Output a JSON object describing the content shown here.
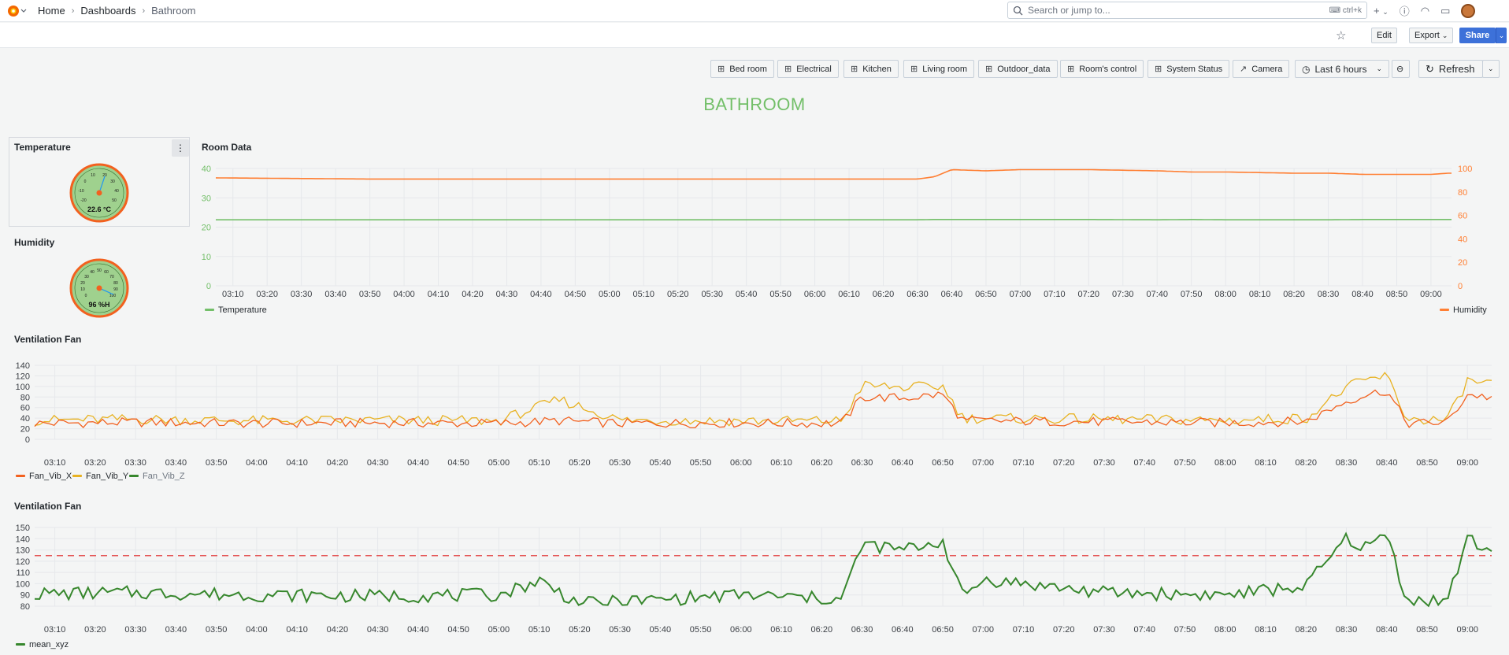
{
  "nav": {
    "breadcrumb": [
      "Home",
      "Dashboards",
      "Bathroom"
    ],
    "search_placeholder": "Search or jump to...",
    "search_shortcut": "ctrl+k",
    "add_label": "+",
    "icons": [
      "help-icon",
      "rss-icon",
      "dock-icon"
    ]
  },
  "toolbar": {
    "edit": "Edit",
    "export": "Export",
    "share": "Share"
  },
  "links": [
    "Bed room",
    "Electrical",
    "Kitchen",
    "Living room",
    "Outdoor_data",
    "Room's control",
    "System Status",
    "Camera"
  ],
  "time_picker": "Last 6 hours",
  "refresh": "Refresh",
  "dashboard_title": "BATHROOM",
  "colors": {
    "green": "#73bf69",
    "orange": "#ff7f33",
    "fan_x": "#f2611f",
    "fan_y": "#e8b222",
    "fan_z": "#37872d",
    "threshold": "#e45454"
  },
  "temperature": {
    "title": "Temperature",
    "value": "22.6 °C",
    "gauge_ticks": [
      "-20",
      "-10",
      "0",
      "10",
      "20",
      "30",
      "40",
      "50"
    ]
  },
  "humidity": {
    "title": "Humidity",
    "value": "96 %H",
    "gauge_ticks": [
      "0",
      "10",
      "20",
      "30",
      "40",
      "50",
      "60",
      "70",
      "80",
      "90",
      "100"
    ]
  },
  "room_data": {
    "title": "Room Data",
    "legend_left": "Temperature",
    "legend_right": "Humidity",
    "y_left_ticks": [
      "0",
      "10",
      "20",
      "30",
      "40"
    ],
    "y_right_ticks": [
      "0",
      "20",
      "40",
      "60",
      "80",
      "100"
    ]
  },
  "fan1": {
    "title": "Ventilation Fan",
    "y_ticks": [
      "0",
      "20",
      "40",
      "60",
      "80",
      "100",
      "120",
      "140"
    ],
    "legend": [
      "Fan_Vib_X",
      "Fan_Vib_Y",
      "Fan_Vib_Z"
    ]
  },
  "fan2": {
    "title": "Ventilation Fan",
    "y_ticks": [
      "80",
      "90",
      "100",
      "110",
      "120",
      "130",
      "140",
      "150"
    ],
    "legend": [
      "mean_xyz"
    ],
    "threshold": 125
  },
  "time_ticks": [
    "03:10",
    "03:20",
    "03:30",
    "03:40",
    "03:50",
    "04:00",
    "04:10",
    "04:20",
    "04:30",
    "04:40",
    "04:50",
    "05:00",
    "05:10",
    "05:20",
    "05:30",
    "05:40",
    "05:50",
    "06:00",
    "06:10",
    "06:20",
    "06:30",
    "06:40",
    "06:50",
    "07:00",
    "07:10",
    "07:20",
    "07:30",
    "07:40",
    "07:50",
    "08:00",
    "08:10",
    "08:20",
    "08:30",
    "08:40",
    "08:50",
    "09:00"
  ],
  "chart_data": [
    {
      "type": "line",
      "title": "Room Data",
      "x": [
        "03:05",
        "03:50",
        "06:30",
        "06:35",
        "06:40",
        "06:50",
        "07:00",
        "07:20",
        "07:40",
        "07:50",
        "08:00",
        "08:20",
        "08:30",
        "08:40",
        "09:00",
        "09:05"
      ],
      "series": [
        {
          "name": "Temperature",
          "axis": "left",
          "values": [
            22.5,
            22.5,
            22.5,
            22.6,
            22.6,
            22.6,
            22.6,
            22.6,
            22.5,
            22.6,
            22.5,
            22.5,
            22.5,
            22.6,
            22.6,
            22.6
          ]
        },
        {
          "name": "Humidity",
          "axis": "right",
          "values": [
            92,
            91,
            91,
            93,
            99,
            98,
            99,
            99,
            98,
            97,
            97,
            96,
            96,
            95,
            95,
            96
          ]
        }
      ],
      "ylim_left": [
        0,
        40
      ],
      "ylim_right": [
        0,
        100
      ]
    },
    {
      "type": "line",
      "title": "Ventilation Fan",
      "x": [
        "03:05",
        "03:30",
        "04:00",
        "04:30",
        "05:00",
        "05:15",
        "05:30",
        "06:00",
        "06:25",
        "06:30",
        "06:40",
        "06:50",
        "06:55",
        "07:30",
        "08:00",
        "08:20",
        "08:30",
        "08:35",
        "08:40",
        "08:45",
        "08:55",
        "09:00",
        "09:05"
      ],
      "series": [
        {
          "name": "Fan_Vib_X",
          "values": [
            30,
            32,
            30,
            31,
            30,
            35,
            30,
            31,
            30,
            80,
            78,
            85,
            35,
            33,
            31,
            34,
            72,
            85,
            92,
            30,
            32,
            85,
            80
          ]
        },
        {
          "name": "Fan_Vib_Y",
          "values": [
            36,
            38,
            35,
            36,
            35,
            75,
            36,
            35,
            35,
            102,
            98,
            100,
            40,
            38,
            36,
            40,
            98,
            112,
            120,
            38,
            36,
            110,
            106
          ]
        }
      ],
      "ylim": [
        0,
        140
      ]
    },
    {
      "type": "line",
      "title": "Ventilation Fan",
      "x": [
        "03:05",
        "03:30",
        "04:00",
        "04:30",
        "05:00",
        "05:10",
        "05:20",
        "06:00",
        "06:25",
        "06:30",
        "06:40",
        "06:50",
        "06:55",
        "07:00",
        "07:30",
        "08:00",
        "08:20",
        "08:30",
        "08:35",
        "08:40",
        "08:45",
        "08:55",
        "09:00",
        "09:05"
      ],
      "series": [
        {
          "name": "mean_xyz",
          "values": [
            91,
            92,
            90,
            89,
            90,
            103,
            82,
            90,
            86,
            135,
            130,
            138,
            88,
            104,
            92,
            90,
            98,
            140,
            132,
            145,
            85,
            85,
            140,
            130
          ]
        }
      ],
      "threshold": 125,
      "ylim": [
        80,
        150
      ]
    }
  ]
}
